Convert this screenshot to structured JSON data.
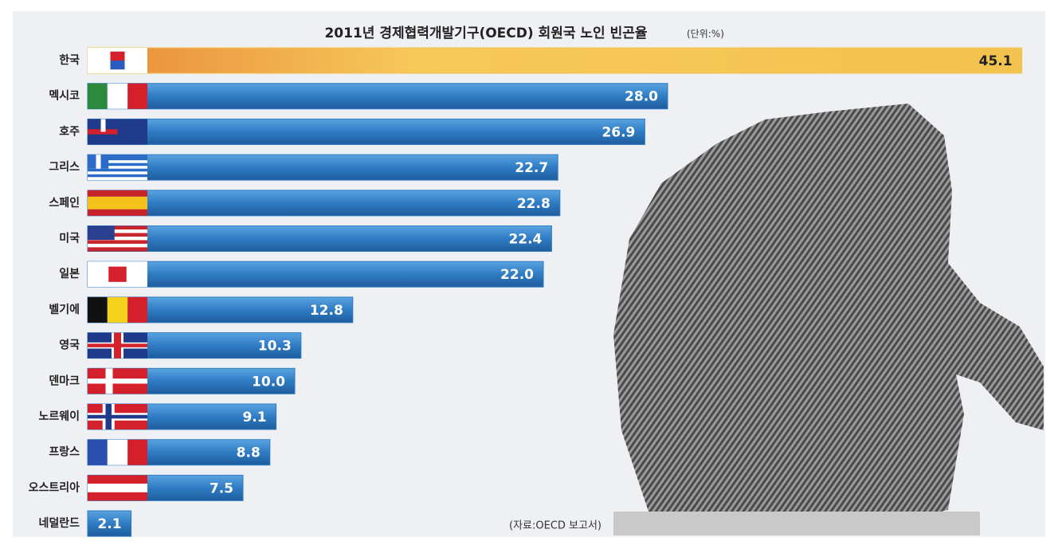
{
  "chart_data": {
    "type": "bar",
    "orientation": "horizontal",
    "title": "2011년 경제협력개발기구(OECD) 회원국 노인 빈곤율",
    "subtitle": "(단위:%)",
    "source": "(자료:OECD 보고서)",
    "categories": [
      "한국",
      "멕시코",
      "호주",
      "그리스",
      "스페인",
      "미국",
      "일본",
      "벨기에",
      "영국",
      "덴마크",
      "노르웨이",
      "프랑스",
      "오스트리아",
      "네덜란드"
    ],
    "values": [
      45.1,
      28.0,
      26.9,
      22.7,
      22.8,
      22.4,
      22.0,
      12.8,
      10.3,
      10.0,
      9.1,
      8.8,
      7.5,
      2.1
    ],
    "value_labels": [
      "45.1",
      "28.0",
      "26.9",
      "22.7",
      "22.8",
      "22.4",
      "22.0",
      "12.8",
      "10.3",
      "10.0",
      "9.1",
      "8.8",
      "7.5",
      "2.1"
    ],
    "colors": [
      "#f3c34f",
      "#2f7cc4",
      "#2f7cc4",
      "#2f7cc4",
      "#2f7cc4",
      "#2f7cc4",
      "#2f7cc4",
      "#2f7cc4",
      "#2f7cc4",
      "#2f7cc4",
      "#2f7cc4",
      "#2f7cc4",
      "#2f7cc4",
      "#2f7cc4"
    ]
  }
}
